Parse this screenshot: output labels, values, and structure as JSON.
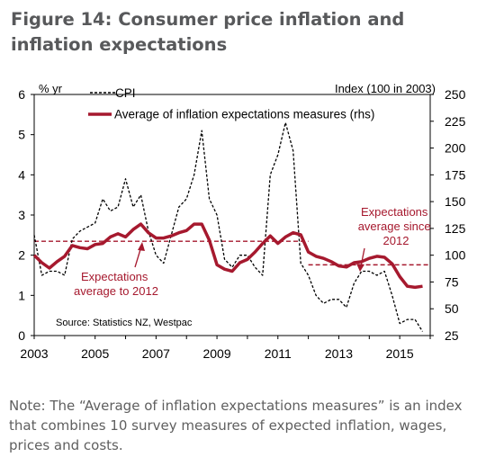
{
  "figure": {
    "title": "Figure 14: Consumer price inflation and inflation expectations",
    "note": "Note: The “Average of inflation expectations measures” is an index that combines 10 survey measures of expected inflation, wages, prices and costs."
  },
  "chart_data": {
    "type": "line",
    "left_axis": {
      "label": "% yr",
      "range": [
        0,
        6
      ],
      "ticks": [
        "0",
        "1",
        "2",
        "3",
        "4",
        "5",
        "6"
      ]
    },
    "right_axis": {
      "label": "Index (100 in 2003)",
      "range": [
        25,
        250
      ],
      "ticks": [
        "25",
        "50",
        "75",
        "100",
        "125",
        "150",
        "175",
        "200",
        "225",
        "250"
      ]
    },
    "x_axis": {
      "range": [
        2003,
        2016
      ],
      "ticks": [
        "2003",
        "2005",
        "2007",
        "2009",
        "2011",
        "2013",
        "2015"
      ]
    },
    "grid": false,
    "legend_position": "top",
    "series": [
      {
        "name": "CPI",
        "axis": "left",
        "style": "dashed",
        "color": "#000000",
        "x": [
          2003.0,
          2003.25,
          2003.5,
          2003.75,
          2004.0,
          2004.25,
          2004.5,
          2004.75,
          2005.0,
          2005.25,
          2005.5,
          2005.75,
          2006.0,
          2006.25,
          2006.5,
          2006.75,
          2007.0,
          2007.25,
          2007.5,
          2007.75,
          2008.0,
          2008.25,
          2008.5,
          2008.75,
          2009.0,
          2009.25,
          2009.5,
          2009.75,
          2010.0,
          2010.25,
          2010.5,
          2010.75,
          2011.0,
          2011.25,
          2011.5,
          2011.75,
          2012.0,
          2012.25,
          2012.5,
          2012.75,
          2013.0,
          2013.25,
          2013.5,
          2013.75,
          2014.0,
          2014.25,
          2014.5,
          2014.75,
          2015.0,
          2015.25,
          2015.5,
          2015.75
        ],
        "y": [
          2.5,
          1.5,
          1.6,
          1.6,
          1.5,
          2.4,
          2.6,
          2.7,
          2.8,
          3.4,
          3.1,
          3.2,
          3.9,
          3.2,
          3.5,
          2.6,
          2.0,
          1.8,
          2.5,
          3.2,
          3.4,
          4.0,
          5.1,
          3.4,
          3.0,
          1.9,
          1.7,
          2.0,
          2.0,
          1.7,
          1.5,
          4.0,
          4.5,
          5.3,
          4.6,
          1.8,
          1.5,
          1.0,
          0.8,
          0.9,
          0.9,
          0.7,
          1.3,
          1.6,
          1.6,
          1.5,
          1.6,
          1.0,
          0.3,
          0.4,
          0.4,
          0.1
        ]
      },
      {
        "name": "Average of inflation expectations measures (rhs)",
        "axis": "right",
        "style": "solid",
        "color": "#a6192e",
        "x": [
          2003.0,
          2003.25,
          2003.5,
          2003.75,
          2004.0,
          2004.25,
          2004.5,
          2004.75,
          2005.0,
          2005.25,
          2005.5,
          2005.75,
          2006.0,
          2006.25,
          2006.5,
          2006.75,
          2007.0,
          2007.25,
          2007.5,
          2007.75,
          2008.0,
          2008.25,
          2008.5,
          2008.75,
          2009.0,
          2009.25,
          2009.5,
          2009.75,
          2010.0,
          2010.25,
          2010.5,
          2010.75,
          2011.0,
          2011.25,
          2011.5,
          2011.75,
          2012.0,
          2012.25,
          2012.5,
          2012.75,
          2013.0,
          2013.25,
          2013.5,
          2013.75,
          2014.0,
          2014.25,
          2014.5,
          2014.75,
          2015.0,
          2015.25,
          2015.5,
          2015.75
        ],
        "y": [
          100,
          93,
          88,
          94,
          99,
          109,
          107,
          106,
          110,
          111,
          117,
          120,
          117,
          124,
          129,
          121,
          116,
          116,
          118,
          121,
          123,
          129,
          129,
          114,
          91,
          87,
          85,
          93,
          96,
          103,
          111,
          118,
          111,
          117,
          121,
          119,
          103,
          99,
          97,
          94,
          90,
          89,
          93,
          94,
          97,
          99,
          98,
          92,
          80,
          71,
          70,
          71
        ]
      }
    ],
    "reference_lines": [
      {
        "axis": "right",
        "value": 113,
        "x_from": 2003,
        "x_to": 2012,
        "style": "dashed",
        "color": "#a6192e"
      },
      {
        "axis": "right",
        "value": 91,
        "x_from": 2012,
        "x_to": 2016,
        "style": "dashed",
        "color": "#a6192e"
      }
    ],
    "annotations": [
      {
        "lines": [
          "Expectations",
          "average to 2012"
        ],
        "color": "#a6192e"
      },
      {
        "lines": [
          "Expectations",
          "average since",
          "2012"
        ],
        "color": "#a6192e"
      }
    ],
    "source": "Source: Statistics NZ, Westpac"
  }
}
